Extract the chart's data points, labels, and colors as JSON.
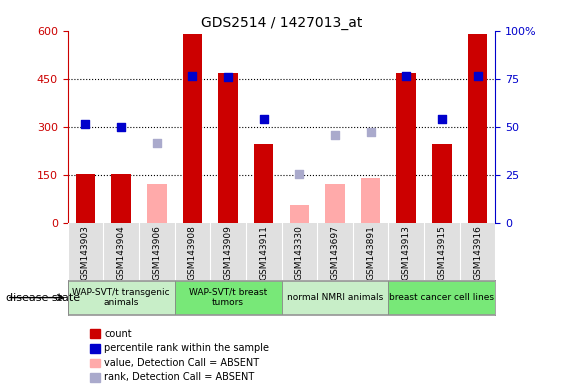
{
  "title": "GDS2514 / 1427013_at",
  "samples": [
    "GSM143903",
    "GSM143904",
    "GSM143906",
    "GSM143908",
    "GSM143909",
    "GSM143911",
    "GSM143330",
    "GSM143697",
    "GSM143891",
    "GSM143913",
    "GSM143915",
    "GSM143916"
  ],
  "count_values": [
    152,
    152,
    null,
    590,
    468,
    245,
    null,
    null,
    null,
    468,
    245,
    590
  ],
  "count_absent": [
    null,
    null,
    120,
    null,
    null,
    null,
    55,
    120,
    140,
    null,
    null,
    null
  ],
  "rank_present": [
    310,
    298,
    null,
    460,
    455,
    323,
    null,
    null,
    null,
    460,
    323,
    458
  ],
  "rank_absent": [
    null,
    null,
    248,
    null,
    null,
    null,
    153,
    275,
    283,
    null,
    null,
    null
  ],
  "disease_groups": [
    {
      "label": "WAP-SVT/t transgenic\nanimals",
      "start": 0,
      "end": 3,
      "color": "#c8eec8"
    },
    {
      "label": "WAP-SVT/t breast\ntumors",
      "start": 3,
      "end": 6,
      "color": "#78e878"
    },
    {
      "label": "normal NMRI animals",
      "start": 6,
      "end": 9,
      "color": "#c8eec8"
    },
    {
      "label": "breast cancer cell lines",
      "start": 9,
      "end": 12,
      "color": "#78e878"
    }
  ],
  "ylim_left": [
    0,
    600
  ],
  "ylim_right": [
    0,
    100
  ],
  "yticks_left": [
    0,
    150,
    300,
    450,
    600
  ],
  "yticks_right": [
    0,
    25,
    50,
    75,
    100
  ],
  "color_count": "#cc0000",
  "color_count_absent": "#ffaaaa",
  "color_rank": "#0000cc",
  "color_rank_absent": "#aaaacc",
  "bar_width": 0.55,
  "figsize": [
    5.63,
    3.84
  ],
  "dpi": 100
}
